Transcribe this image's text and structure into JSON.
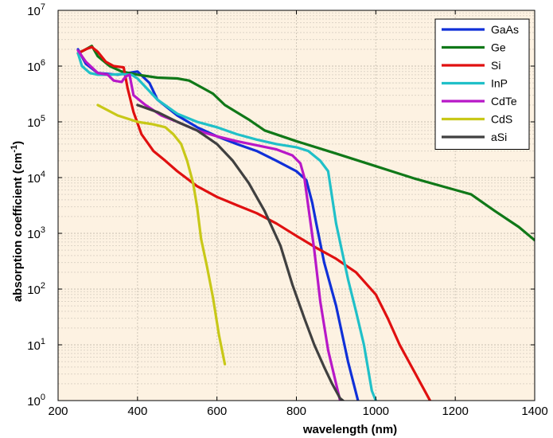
{
  "chart_data": {
    "type": "line",
    "title": "",
    "xlabel": "wavelength (nm)",
    "ylabel_main": "absorption coefficient (cm",
    "ylabel_sup": "-1",
    "ylabel_close": ")",
    "xlim": [
      200,
      1400
    ],
    "ylim": [
      1,
      10000000
    ],
    "yscale": "log",
    "x_ticks": [
      "200",
      "400",
      "600",
      "800",
      "1000",
      "1200",
      "1400"
    ],
    "y_tick_base": "10",
    "y_tick_exponents": [
      "0",
      "1",
      "2",
      "3",
      "4",
      "5",
      "6",
      "7"
    ],
    "grid": true,
    "legend_position": "top-right",
    "background_color": "#fdf2e2",
    "series": [
      {
        "name": "GaAs",
        "color": "#1030d8",
        "points": [
          [
            250,
            2000000
          ],
          [
            270,
            1100000
          ],
          [
            300,
            750000
          ],
          [
            350,
            700000
          ],
          [
            400,
            800000
          ],
          [
            430,
            500000
          ],
          [
            450,
            250000
          ],
          [
            500,
            130000
          ],
          [
            550,
            80000
          ],
          [
            600,
            55000
          ],
          [
            650,
            40000
          ],
          [
            700,
            30000
          ],
          [
            750,
            20000
          ],
          [
            800,
            13000
          ],
          [
            825,
            9000
          ],
          [
            840,
            3500
          ],
          [
            850,
            1500
          ],
          [
            870,
            300
          ],
          [
            900,
            50
          ],
          [
            930,
            5
          ],
          [
            955,
            1
          ]
        ]
      },
      {
        "name": "Ge",
        "color": "#107818",
        "points": [
          [
            250,
            1700000
          ],
          [
            270,
            2000000
          ],
          [
            285,
            2300000
          ],
          [
            300,
            1500000
          ],
          [
            330,
            1000000
          ],
          [
            360,
            800000
          ],
          [
            400,
            700000
          ],
          [
            450,
            620000
          ],
          [
            500,
            600000
          ],
          [
            530,
            550000
          ],
          [
            560,
            420000
          ],
          [
            590,
            320000
          ],
          [
            620,
            200000
          ],
          [
            680,
            110000
          ],
          [
            720,
            70000
          ],
          [
            800,
            45000
          ],
          [
            900,
            27000
          ],
          [
            1000,
            16000
          ],
          [
            1100,
            9500
          ],
          [
            1200,
            6000
          ],
          [
            1240,
            5000
          ],
          [
            1300,
            2500
          ],
          [
            1360,
            1300
          ],
          [
            1400,
            750
          ]
        ]
      },
      {
        "name": "Si",
        "color": "#e01010",
        "points": [
          [
            250,
            1700000
          ],
          [
            270,
            2000000
          ],
          [
            285,
            2200000
          ],
          [
            300,
            1800000
          ],
          [
            320,
            1200000
          ],
          [
            340,
            1000000
          ],
          [
            365,
            950000
          ],
          [
            375,
            400000
          ],
          [
            390,
            150000
          ],
          [
            410,
            60000
          ],
          [
            440,
            30000
          ],
          [
            470,
            20000
          ],
          [
            500,
            13000
          ],
          [
            550,
            7000
          ],
          [
            600,
            4500
          ],
          [
            650,
            3200
          ],
          [
            700,
            2300
          ],
          [
            750,
            1500
          ],
          [
            800,
            900
          ],
          [
            850,
            550
          ],
          [
            900,
            350
          ],
          [
            950,
            200
          ],
          [
            1000,
            80
          ],
          [
            1030,
            30
          ],
          [
            1060,
            10
          ],
          [
            1100,
            3
          ],
          [
            1140,
            0.9
          ]
        ]
      },
      {
        "name": "InP",
        "color": "#20c0c8",
        "points": [
          [
            250,
            1700000
          ],
          [
            260,
            1000000
          ],
          [
            280,
            750000
          ],
          [
            300,
            700000
          ],
          [
            330,
            700000
          ],
          [
            360,
            720000
          ],
          [
            385,
            700000
          ],
          [
            400,
            600000
          ],
          [
            450,
            250000
          ],
          [
            500,
            140000
          ],
          [
            550,
            100000
          ],
          [
            600,
            80000
          ],
          [
            650,
            60000
          ],
          [
            700,
            48000
          ],
          [
            750,
            40000
          ],
          [
            800,
            35000
          ],
          [
            830,
            30000
          ],
          [
            860,
            20000
          ],
          [
            880,
            13000
          ],
          [
            900,
            1500
          ],
          [
            930,
            150
          ],
          [
            950,
            40
          ],
          [
            970,
            10
          ],
          [
            990,
            1.5
          ],
          [
            1000,
            1
          ]
        ]
      },
      {
        "name": "CdTe",
        "color": "#b818c8",
        "points": [
          [
            250,
            1900000
          ],
          [
            270,
            1200000
          ],
          [
            300,
            750000
          ],
          [
            325,
            700000
          ],
          [
            340,
            550000
          ],
          [
            360,
            520000
          ],
          [
            370,
            650000
          ],
          [
            380,
            700000
          ],
          [
            390,
            300000
          ],
          [
            420,
            200000
          ],
          [
            460,
            130000
          ],
          [
            500,
            100000
          ],
          [
            550,
            70000
          ],
          [
            600,
            55000
          ],
          [
            650,
            45000
          ],
          [
            700,
            38000
          ],
          [
            750,
            32000
          ],
          [
            790,
            25000
          ],
          [
            810,
            18000
          ],
          [
            820,
            10000
          ],
          [
            830,
            3000
          ],
          [
            845,
            500
          ],
          [
            860,
            60
          ],
          [
            880,
            8
          ],
          [
            900,
            2
          ],
          [
            910,
            1
          ]
        ]
      },
      {
        "name": "CdS",
        "color": "#c8c818",
        "points": [
          [
            300,
            200000
          ],
          [
            350,
            130000
          ],
          [
            400,
            100000
          ],
          [
            440,
            90000
          ],
          [
            470,
            80000
          ],
          [
            490,
            60000
          ],
          [
            510,
            40000
          ],
          [
            525,
            20000
          ],
          [
            540,
            8000
          ],
          [
            550,
            3000
          ],
          [
            560,
            800
          ],
          [
            575,
            250
          ],
          [
            590,
            70
          ],
          [
            605,
            15
          ],
          [
            620,
            4.5
          ]
        ]
      },
      {
        "name": "aSi",
        "color": "#404040",
        "points": [
          [
            400,
            200000
          ],
          [
            450,
            150000
          ],
          [
            500,
            100000
          ],
          [
            550,
            70000
          ],
          [
            600,
            40000
          ],
          [
            640,
            20000
          ],
          [
            680,
            8000
          ],
          [
            720,
            2500
          ],
          [
            760,
            600
          ],
          [
            790,
            120
          ],
          [
            820,
            30
          ],
          [
            845,
            10
          ],
          [
            870,
            4
          ],
          [
            890,
            2
          ],
          [
            910,
            1.1
          ],
          [
            925,
            0.9
          ]
        ]
      }
    ]
  }
}
